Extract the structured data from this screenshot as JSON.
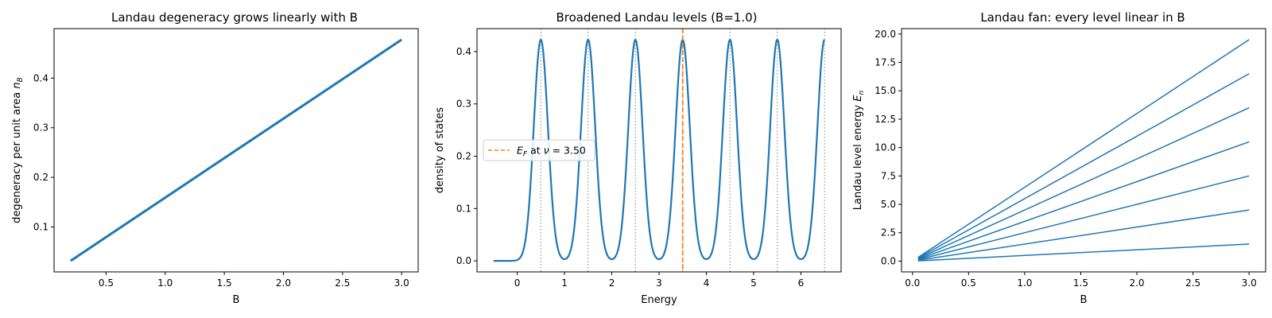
{
  "charts": [
    {
      "id": "degeneracy",
      "title": "Landau degeneracy grows linearly with B",
      "xlabel": "B",
      "ylabel": "degeneracy per unit area n_B",
      "ylabel_main": "degeneracy per unit area ",
      "ylabel_var": "n",
      "ylabel_sub": "B",
      "xticks": [
        "0.5",
        "1.0",
        "1.5",
        "2.0",
        "2.5",
        "3.0"
      ],
      "yticks": [
        "0.1",
        "0.2",
        "0.3",
        "0.4"
      ]
    },
    {
      "id": "dos",
      "title": "Broadened Landau levels (B=1.0)",
      "xlabel": "Energy",
      "ylabel": "density of states",
      "xticks": [
        "0",
        "1",
        "2",
        "3",
        "4",
        "5",
        "6"
      ],
      "yticks": [
        "0.0",
        "0.1",
        "0.2",
        "0.3",
        "0.4"
      ],
      "legend": {
        "var": "E",
        "sub": "F",
        "mid": " at ",
        "nu": "ν",
        "eq": " = 3.50",
        "text": "E_F at ν = 3.50"
      }
    },
    {
      "id": "fan",
      "title": "Landau fan: every level linear in B",
      "xlabel": "B",
      "ylabel": "Landau level energy E_n",
      "ylabel_main": "Landau level energy ",
      "ylabel_var": "E",
      "ylabel_sub": "n",
      "xticks": [
        "0.0",
        "0.5",
        "1.0",
        "1.5",
        "2.0",
        "2.5",
        "3.0"
      ],
      "yticks": [
        "0.0",
        "2.5",
        "5.0",
        "7.5",
        "10.0",
        "12.5",
        "15.0",
        "17.5",
        "20.0"
      ]
    }
  ],
  "colors": {
    "series": "#1f77b4",
    "fermi": "#ff7f0e",
    "level_marker": "#808080"
  },
  "chart_data": [
    {
      "type": "line",
      "title": "Landau degeneracy grows linearly with B",
      "xlabel": "B",
      "ylabel": "degeneracy per unit area n_B",
      "series": [
        {
          "x": [
            0.2,
            3.0
          ],
          "y": [
            0.0318,
            0.4775
          ]
        }
      ],
      "xlim": [
        0.06,
        3.14
      ],
      "ylim": [
        0.0095,
        0.4998
      ],
      "grid": false
    },
    {
      "type": "line",
      "title": "Broadened Landau levels (B=1.0)",
      "xlabel": "Energy",
      "ylabel": "density of states",
      "series": [
        {
          "model": "sum of Gaussians",
          "centers": [
            0.5,
            1.5,
            2.5,
            3.5,
            4.5,
            5.5,
            6.5
          ],
          "peak": 0.4228,
          "sigma": 0.15,
          "x_range": [
            -0.5,
            6.5
          ]
        },
        {
          "name": "E_F at ν = 3.50",
          "style": "dashed vertical",
          "x": 3.5
        }
      ],
      "level_markers": [
        0.5,
        1.5,
        2.5,
        3.5,
        4.5,
        5.5,
        6.5
      ],
      "xlim": [
        -0.85,
        6.85
      ],
      "ylim": [
        -0.0211,
        0.444
      ],
      "legend": "center-left",
      "grid": false
    },
    {
      "type": "line",
      "title": "Landau fan: every level linear in B",
      "xlabel": "B",
      "ylabel": "Landau level energy E_n",
      "x": [
        0.05,
        3.0
      ],
      "series": [
        {
          "n": 0,
          "y": [
            0.025,
            1.5
          ]
        },
        {
          "n": 1,
          "y": [
            0.075,
            4.5
          ]
        },
        {
          "n": 2,
          "y": [
            0.125,
            7.5
          ]
        },
        {
          "n": 3,
          "y": [
            0.175,
            10.5
          ]
        },
        {
          "n": 4,
          "y": [
            0.225,
            13.5
          ]
        },
        {
          "n": 5,
          "y": [
            0.275,
            16.5
          ]
        },
        {
          "n": 6,
          "y": [
            0.325,
            19.5
          ]
        }
      ],
      "xlim": [
        -0.0975,
        3.1475
      ],
      "ylim": [
        -0.949,
        20.474
      ],
      "grid": false
    }
  ]
}
